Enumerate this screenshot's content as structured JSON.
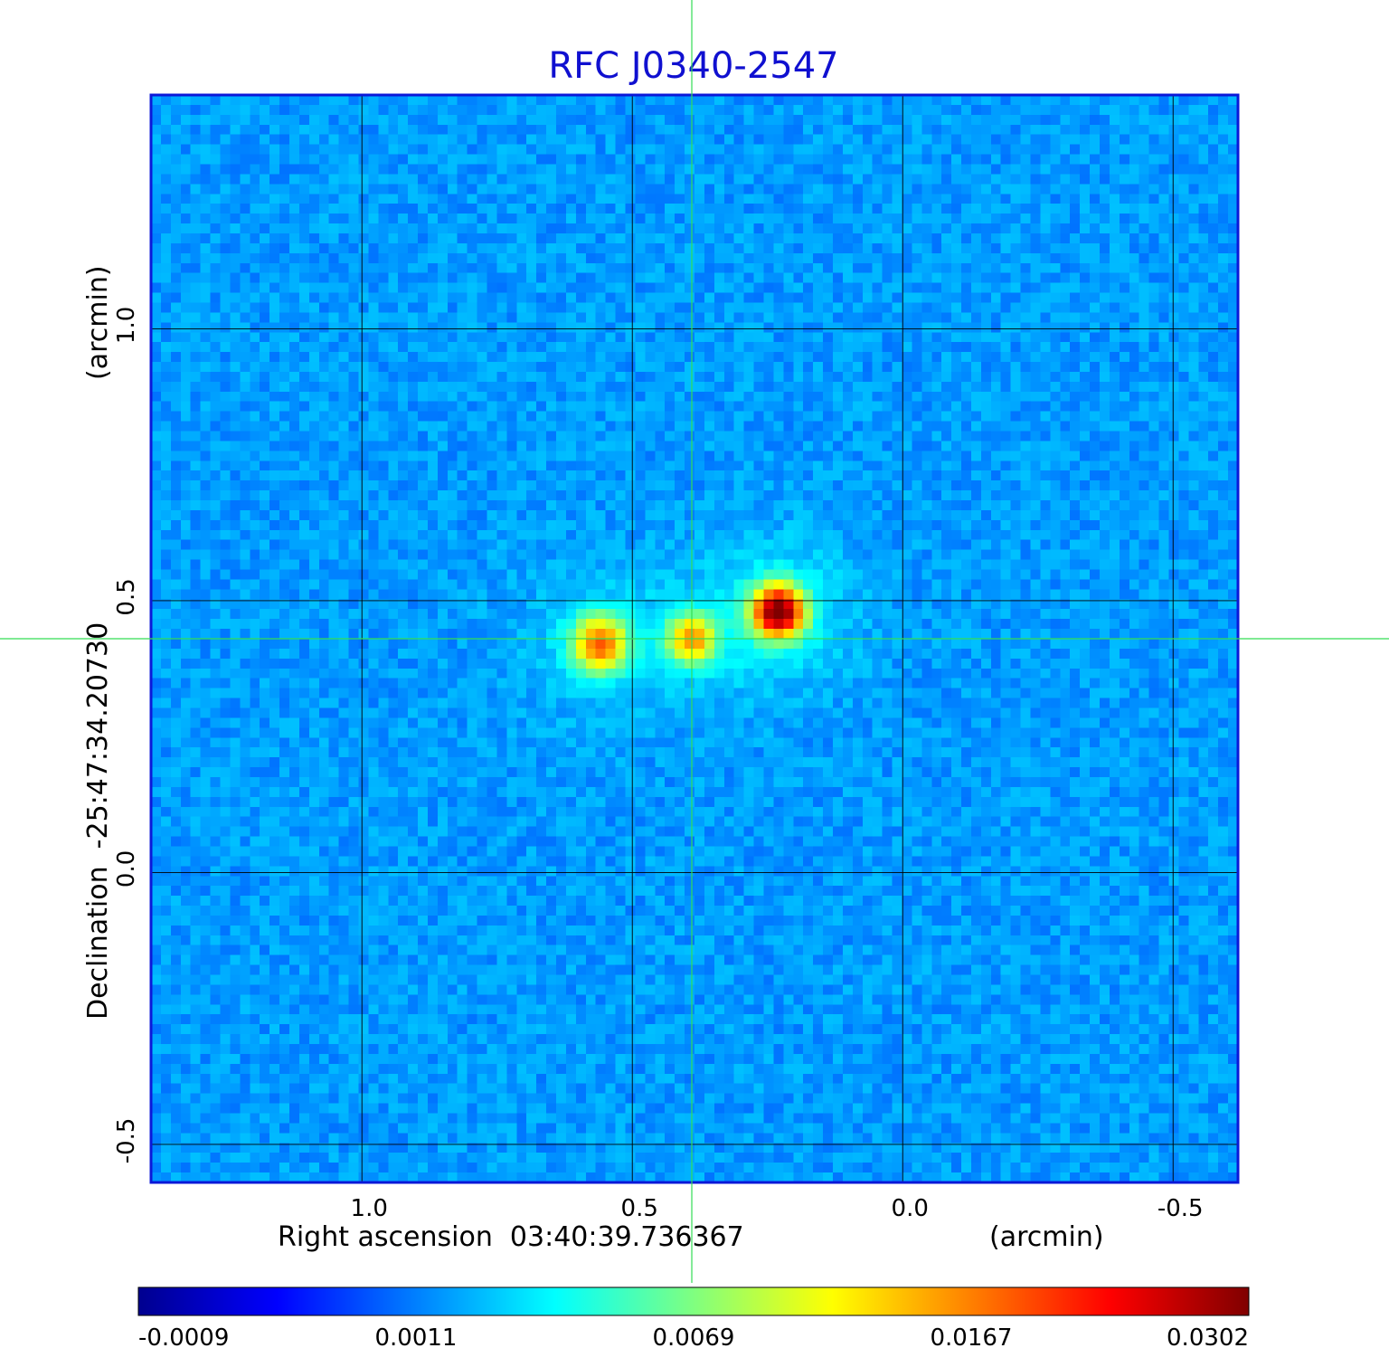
{
  "chart_data": {
    "type": "heatmap",
    "title": "RFC J0340-2547",
    "xlabel": "Right ascension  03:40:39.736367",
    "xunit": "(arcmin)",
    "ylabel": "Declination  -25:47:34.20730",
    "yunit": "(arcmin)",
    "xlim": [
      1.39,
      -0.62
    ],
    "ylim": [
      -0.57,
      1.43
    ],
    "x_ticks": [
      {
        "value": 1.0,
        "label": "1.0"
      },
      {
        "value": 0.5,
        "label": "0.5"
      },
      {
        "value": 0.0,
        "label": "0.0"
      },
      {
        "value": -0.5,
        "label": "-0.5"
      }
    ],
    "y_ticks": [
      {
        "value": 1.0,
        "label": "1.0"
      },
      {
        "value": 0.5,
        "label": "0.5"
      },
      {
        "value": 0.0,
        "label": "0.0"
      },
      {
        "value": -0.5,
        "label": "-0.5"
      }
    ],
    "grid": true,
    "crosshair": {
      "x": 0.39,
      "y": 0.43,
      "color": "#33dd55"
    },
    "colormap": "jet",
    "colorbar": {
      "ticks": [
        "-0.0009",
        "0.0011",
        "0.0069",
        "0.0167",
        "0.0302"
      ],
      "min": -0.0009,
      "max": 0.0302
    },
    "background_level": 0.0005,
    "noise_amplitude": 0.0006,
    "components": [
      {
        "x": 0.56,
        "y": 0.42,
        "peak": 0.0165,
        "sigma": 0.032
      },
      {
        "x": 0.39,
        "y": 0.43,
        "peak": 0.014,
        "sigma": 0.028
      },
      {
        "x": 0.23,
        "y": 0.48,
        "peak": 0.0302,
        "sigma": 0.03
      }
    ],
    "colors": {
      "frame": "#0b18d8",
      "title": "#1010d0",
      "grid": "#000000"
    }
  }
}
